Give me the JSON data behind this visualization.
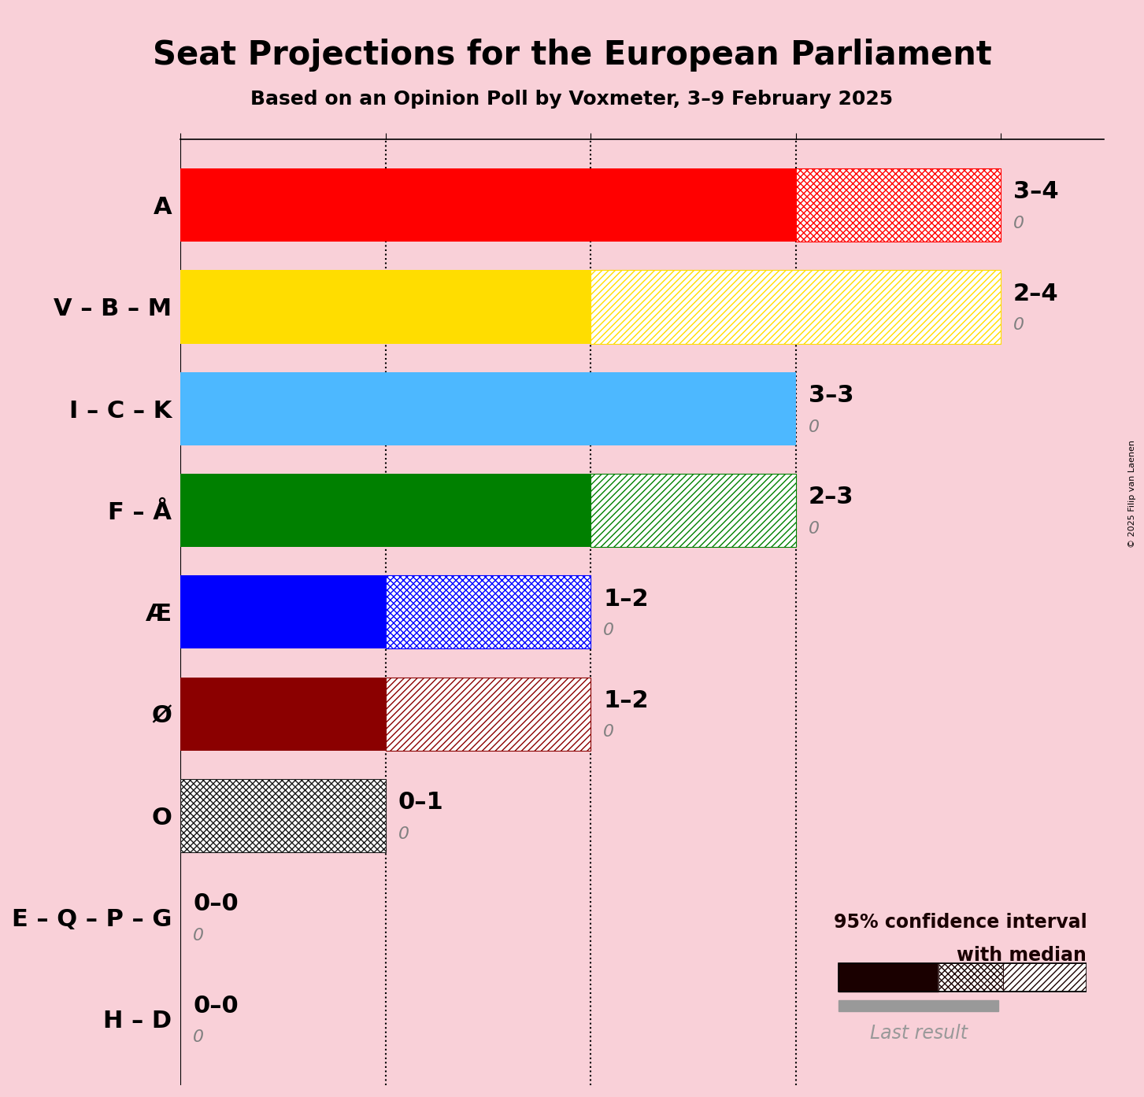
{
  "title": "Seat Projections for the European Parliament",
  "subtitle": "Based on an Opinion Poll by Voxmeter, 3–9 February 2025",
  "copyright": "© 2025 Filip van Laenen",
  "background_color": "#f9d0d8",
  "parties": [
    "A",
    "V – B – M",
    "I – C – K",
    "F – Å",
    "Æ",
    "Ø",
    "O",
    "E – Q – P – G",
    "H – D"
  ],
  "median_seats": [
    3,
    2,
    3,
    2,
    1,
    1,
    0,
    0,
    0
  ],
  "max_seats": [
    4,
    4,
    3,
    3,
    2,
    2,
    1,
    0,
    0
  ],
  "last_result": [
    0,
    0,
    0,
    0,
    0,
    0,
    0,
    0,
    0
  ],
  "seat_labels": [
    "3–4",
    "2–4",
    "3–3",
    "2–3",
    "1–2",
    "1–2",
    "0–1",
    "0–0",
    "0–0"
  ],
  "colors": [
    "#ff0000",
    "#ffdd00",
    "#4db8ff",
    "#008000",
    "#0000ff",
    "#8b0000",
    "#1a1a1a",
    "#c0c0c0",
    "#c0c0c0"
  ],
  "hatch_types": [
    "xx",
    "//",
    "xx",
    "//",
    "xx",
    "//",
    "xx",
    "xx",
    "xx"
  ],
  "xlim": [
    0,
    4.5
  ],
  "xticks": [
    0,
    1,
    2,
    3,
    4
  ],
  "dotted_lines": [
    1,
    2,
    3
  ],
  "bar_height": 0.72,
  "title_fontsize": 30,
  "subtitle_fontsize": 18,
  "ytick_fontsize": 22,
  "annotation_fontsize": 22,
  "legend_fontsize": 17
}
